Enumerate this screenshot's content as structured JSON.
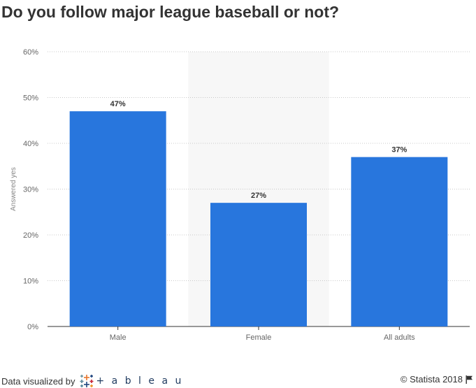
{
  "title": "Do you follow major league baseball or not?",
  "footer": {
    "credit_label": "Data visualized by",
    "tableau_word": "+ a b l e a u",
    "copyright": "© Statista 2018",
    "icons": {
      "tableau_logo": "tableau-logo-icon",
      "flag": "flag-icon"
    }
  },
  "colors": {
    "bar": "#2876dd",
    "highlight_band": "#f7f7f7",
    "grid": "#c8c8c8",
    "text": "#333333",
    "axis_text": "#666666"
  },
  "chart_data": {
    "type": "bar",
    "title": "Do you follow major league baseball or not?",
    "categories": [
      "Male",
      "Female",
      "All adults"
    ],
    "values": [
      47,
      27,
      37
    ],
    "value_labels": [
      "47%",
      "27%",
      "37%"
    ],
    "ylabel": "Answered yes",
    "xlabel": "",
    "ylim": [
      0,
      60
    ],
    "yticks": [
      0,
      10,
      20,
      30,
      40,
      50,
      60
    ],
    "ytick_labels": [
      "0%",
      "10%",
      "20%",
      "30%",
      "40%",
      "50%",
      "60%"
    ],
    "grid": true,
    "highlighted_category": "Female"
  }
}
